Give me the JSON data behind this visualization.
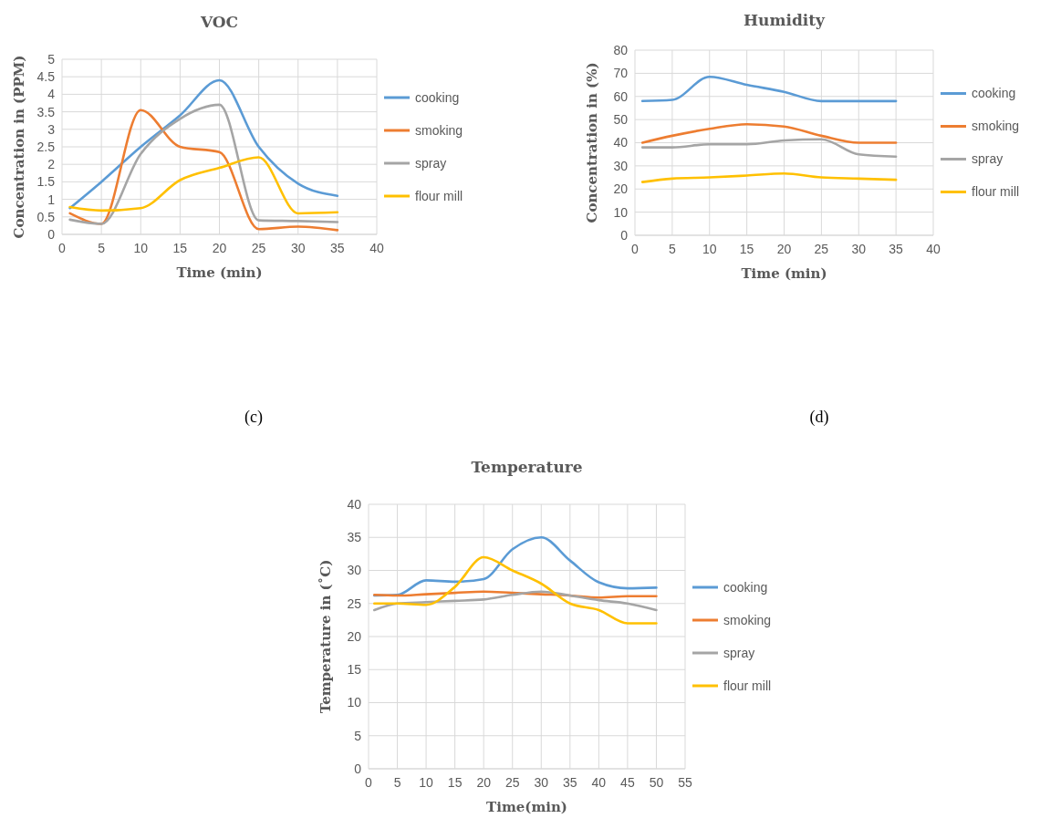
{
  "chart_data": [
    {
      "type": "line",
      "title": "VOC",
      "xlabel": "Time (min)",
      "ylabel": "Concentration in (PPM)",
      "annotations": [
        "(c)"
      ],
      "x": [
        1,
        5,
        10,
        15,
        20,
        25,
        30,
        35
      ],
      "xlim": [
        0,
        40
      ],
      "xticks": [
        0,
        5,
        10,
        15,
        20,
        25,
        30,
        35,
        40
      ],
      "ylim": [
        0,
        5
      ],
      "yticks": [
        0,
        0.5,
        1,
        1.5,
        2,
        2.5,
        3,
        3.5,
        4,
        4.5,
        5
      ],
      "grid": true,
      "legend": "right",
      "series": [
        {
          "name": "cooking",
          "color": "#5b9bd5",
          "values": [
            0.75,
            1.5,
            2.5,
            3.4,
            4.4,
            2.5,
            1.45,
            1.1
          ]
        },
        {
          "name": "smoking",
          "color": "#ed7d31",
          "values": [
            0.6,
            0.3,
            3.55,
            2.5,
            2.35,
            0.15,
            0.22,
            0.12
          ]
        },
        {
          "name": "spray",
          "color": "#a5a5a5",
          "values": [
            0.42,
            0.3,
            2.3,
            3.3,
            3.7,
            0.4,
            0.38,
            0.35
          ]
        },
        {
          "name": "flour mill",
          "color": "#ffc000",
          "values": [
            0.78,
            0.68,
            0.75,
            1.55,
            1.9,
            2.2,
            0.6,
            0.63
          ]
        }
      ]
    },
    {
      "type": "line",
      "title": "Humidity",
      "xlabel": "Time (min)",
      "ylabel": "Concentration in (%)",
      "annotations": [
        "(d)"
      ],
      "x": [
        1,
        5,
        10,
        15,
        20,
        25,
        30,
        35
      ],
      "xlim": [
        0,
        40
      ],
      "xticks": [
        0,
        5,
        10,
        15,
        20,
        25,
        30,
        35,
        40
      ],
      "ylim": [
        0,
        80
      ],
      "yticks": [
        0,
        10,
        20,
        30,
        40,
        50,
        60,
        70,
        80
      ],
      "grid": true,
      "legend": "right",
      "series": [
        {
          "name": "cooking",
          "color": "#5b9bd5",
          "values": [
            58,
            58.5,
            68.5,
            65,
            62,
            58,
            58,
            58
          ]
        },
        {
          "name": "smoking",
          "color": "#ed7d31",
          "values": [
            40,
            43,
            46,
            48,
            47,
            43,
            40,
            40
          ]
        },
        {
          "name": "spray",
          "color": "#a5a5a5",
          "values": [
            38,
            38,
            39.3,
            39.3,
            41,
            41.5,
            35,
            34
          ]
        },
        {
          "name": "flour mill",
          "color": "#ffc000",
          "values": [
            23,
            24.5,
            25,
            25.8,
            26.7,
            25,
            24.5,
            24
          ]
        }
      ]
    },
    {
      "type": "line",
      "title": "Temperature",
      "xlabel": "Time(min)",
      "ylabel": "Temperature in (˚C)",
      "x": [
        1,
        5,
        10,
        15,
        20,
        25,
        30,
        35,
        40,
        45,
        50
      ],
      "xlim": [
        0,
        55
      ],
      "xticks": [
        0,
        5,
        10,
        15,
        20,
        25,
        30,
        35,
        40,
        45,
        50,
        55
      ],
      "ylim": [
        0,
        40
      ],
      "yticks": [
        0,
        5,
        10,
        15,
        20,
        25,
        30,
        35,
        40
      ],
      "grid": true,
      "legend": "right",
      "series": [
        {
          "name": "cooking",
          "color": "#5b9bd5",
          "values": [
            26.2,
            26.3,
            28.5,
            28.3,
            28.7,
            33.2,
            35,
            31.5,
            28.2,
            27.3,
            27.4
          ]
        },
        {
          "name": "smoking",
          "color": "#ed7d31",
          "values": [
            26.3,
            26.2,
            26.4,
            26.6,
            26.8,
            26.6,
            26.4,
            26.2,
            25.9,
            26.1,
            26.1
          ]
        },
        {
          "name": "spray",
          "color": "#a5a5a5",
          "values": [
            24,
            25,
            25.2,
            25.4,
            25.6,
            26.3,
            26.8,
            26.2,
            25.5,
            25,
            24
          ]
        },
        {
          "name": "flour mill",
          "color": "#ffc000",
          "values": [
            25,
            25,
            24.8,
            27.5,
            32,
            30,
            28,
            25,
            24,
            22,
            22
          ]
        }
      ]
    }
  ]
}
